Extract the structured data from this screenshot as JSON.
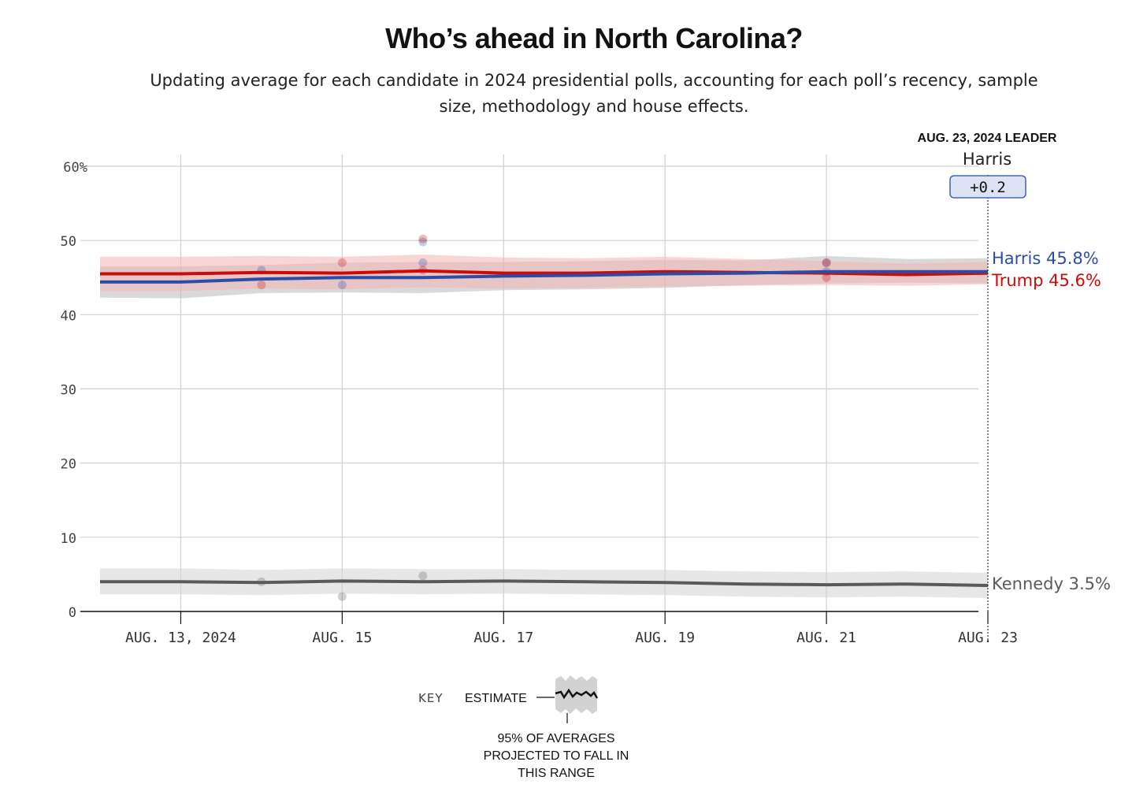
{
  "header": {
    "title": "Who’s ahead in North Carolina?",
    "subtitle": "Updating average for each candidate in 2024 presidential polls, accounting for each poll’s recency, sample size, methodology and house effects."
  },
  "leader": {
    "heading": "AUG. 23, 2024 LEADER",
    "name": "Harris",
    "margin": "+0.2"
  },
  "key": {
    "label": "KEY",
    "estimate": "ESTIMATE",
    "range_line1": "95% OF AVERAGES",
    "range_line2": "PROJECTED TO FALL IN",
    "range_line3": "THIS RANGE"
  },
  "chart_data": {
    "type": "line",
    "title": "Who’s ahead in North Carolina?",
    "xlabel": "",
    "ylabel": "",
    "x": [
      "Aug. 12",
      "Aug. 13",
      "Aug. 14",
      "Aug. 15",
      "Aug. 16",
      "Aug. 17",
      "Aug. 18",
      "Aug. 19",
      "Aug. 20",
      "Aug. 21",
      "Aug. 22",
      "Aug. 23"
    ],
    "x_tick_labels": [
      {
        "date": "Aug. 13",
        "label": "AUG. 13, 2024"
      },
      {
        "date": "Aug. 15",
        "label": "AUG. 15"
      },
      {
        "date": "Aug. 17",
        "label": "AUG. 17"
      },
      {
        "date": "Aug. 19",
        "label": "AUG. 19"
      },
      {
        "date": "Aug. 21",
        "label": "AUG. 21"
      },
      {
        "date": "Aug. 23",
        "label": "AUG. 23"
      }
    ],
    "y_ticks": [
      0,
      10,
      20,
      30,
      40,
      50,
      60
    ],
    "y_tick_labels": [
      "0",
      "10",
      "20",
      "30",
      "40",
      "50",
      "60%"
    ],
    "ylim": [
      0,
      60
    ],
    "grid": true,
    "series": [
      {
        "name": "Trump",
        "end_label": "Trump 45.6%",
        "color": "#cc0a0a",
        "band_color": "#f3b4b4",
        "values": [
          45.5,
          45.5,
          45.7,
          45.6,
          45.9,
          45.6,
          45.6,
          45.8,
          45.7,
          45.6,
          45.4,
          45.6
        ],
        "lower": [
          43.2,
          43.2,
          43.5,
          43.4,
          43.7,
          43.5,
          43.6,
          43.8,
          43.9,
          44.0,
          43.9,
          44.1
        ],
        "upper": [
          47.8,
          47.8,
          47.9,
          47.8,
          48.1,
          47.7,
          47.6,
          47.8,
          47.5,
          47.2,
          46.9,
          47.1
        ],
        "polls": [
          {
            "x": "Aug. 14",
            "y": 44
          },
          {
            "x": "Aug. 15",
            "y": 47
          },
          {
            "x": "Aug. 16",
            "y": 50.2
          },
          {
            "x": "Aug. 16",
            "y": 46
          },
          {
            "x": "Aug. 21",
            "y": 47
          },
          {
            "x": "Aug. 21",
            "y": 45
          }
        ]
      },
      {
        "name": "Harris",
        "end_label": "Harris 45.8%",
        "color": "#2a4ea8",
        "band_color": "#b9b9b9",
        "values": [
          44.4,
          44.4,
          44.8,
          45.0,
          45.0,
          45.2,
          45.3,
          45.5,
          45.6,
          45.8,
          45.8,
          45.8
        ],
        "lower": [
          42.3,
          42.2,
          42.9,
          43.0,
          42.9,
          43.3,
          43.4,
          43.6,
          44.0,
          44.2,
          44.3,
          44.2
        ],
        "upper": [
          46.5,
          46.5,
          46.7,
          47.0,
          47.1,
          47.1,
          47.2,
          47.4,
          47.3,
          47.9,
          47.5,
          47.6
        ],
        "polls": [
          {
            "x": "Aug. 14",
            "y": 46
          },
          {
            "x": "Aug. 15",
            "y": 44
          },
          {
            "x": "Aug. 16",
            "y": 49.8
          },
          {
            "x": "Aug. 16",
            "y": 47
          },
          {
            "x": "Aug. 21",
            "y": 47
          },
          {
            "x": "Aug. 21",
            "y": 45.8
          }
        ]
      },
      {
        "name": "Kennedy",
        "end_label": "Kennedy 3.5%",
        "color": "#5a5a5a",
        "band_color": "#d3d3d3",
        "values": [
          4.0,
          4.0,
          3.9,
          4.1,
          4.0,
          4.1,
          4.0,
          3.9,
          3.7,
          3.6,
          3.7,
          3.5
        ],
        "lower": [
          2.3,
          2.3,
          2.2,
          2.4,
          2.3,
          2.4,
          2.3,
          2.2,
          2.0,
          1.9,
          2.0,
          1.8
        ],
        "upper": [
          5.8,
          5.8,
          5.6,
          5.8,
          5.7,
          5.7,
          5.6,
          5.6,
          5.4,
          5.3,
          5.4,
          5.2
        ],
        "polls": [
          {
            "x": "Aug. 14",
            "y": 4
          },
          {
            "x": "Aug. 15",
            "y": 2
          },
          {
            "x": "Aug. 16",
            "y": 4.8
          }
        ]
      }
    ]
  }
}
